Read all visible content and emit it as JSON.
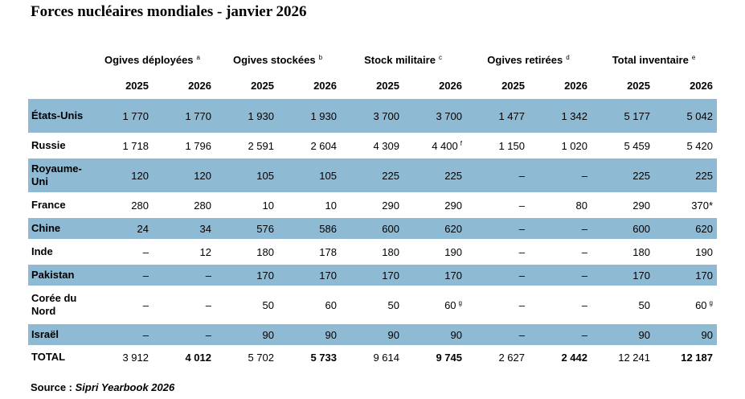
{
  "title": "Forces nucléaires mondiales - janvier 2026",
  "table": {
    "groups": [
      {
        "label": "Ogives déployées",
        "note": "a"
      },
      {
        "label": "Ogives stockées",
        "note": "b"
      },
      {
        "label": "Stock militaire",
        "note": "c"
      },
      {
        "label": "Ogives retirées",
        "note": "d"
      },
      {
        "label": "Total inventaire",
        "note": "e"
      }
    ],
    "years": [
      "2025",
      "2026"
    ],
    "rows": [
      {
        "country": "États-Unis",
        "cells": [
          "1 770",
          "1 770",
          "1 930",
          "1 930",
          "3 700",
          "3 700",
          "1 477",
          "1 342",
          "5 177",
          "5 042"
        ]
      },
      {
        "country": "Russie",
        "cells": [
          "1 718",
          "1 796",
          "2 591",
          "2 604",
          "4 309",
          {
            "value": "4 400",
            "note": "f"
          },
          "1 150",
          "1 020",
          "5 459",
          "5 420"
        ]
      },
      {
        "country": "Royaume-Uni",
        "cells": [
          "120",
          "120",
          "105",
          "105",
          "225",
          "225",
          "–",
          "–",
          "225",
          "225"
        ]
      },
      {
        "country": "France",
        "cells": [
          "280",
          "280",
          "10",
          "10",
          "290",
          "290",
          "–",
          "80",
          "290",
          "370*"
        ]
      },
      {
        "country": "Chine",
        "cells": [
          "24",
          "34",
          "576",
          "586",
          "600",
          "620",
          "–",
          "–",
          "600",
          "620"
        ]
      },
      {
        "country": "Inde",
        "cells": [
          "–",
          "12",
          "180",
          "178",
          "180",
          "190",
          "–",
          "–",
          "180",
          "190"
        ]
      },
      {
        "country": "Pakistan",
        "cells": [
          "–",
          "–",
          "170",
          "170",
          "170",
          "170",
          "–",
          "–",
          "170",
          "170"
        ]
      },
      {
        "country": "Corée du Nord",
        "cells": [
          "–",
          "–",
          "50",
          "60",
          "50",
          {
            "value": "60",
            "note": "g"
          },
          "–",
          "–",
          "50",
          {
            "value": "60",
            "note": "g"
          }
        ]
      },
      {
        "country": "Israël",
        "cells": [
          "–",
          "–",
          "90",
          "90",
          "90",
          "90",
          "–",
          "–",
          "90",
          "90"
        ]
      }
    ],
    "total": {
      "label": "TOTAL",
      "cells": [
        "3 912",
        "4 012",
        "5 702",
        "5 733",
        "9 614",
        "9 745",
        "2 627",
        "2 442",
        "12 241",
        "12 187"
      ]
    }
  },
  "source": {
    "label": "Source :",
    "text": "Sipri Yearbook 2026"
  }
}
